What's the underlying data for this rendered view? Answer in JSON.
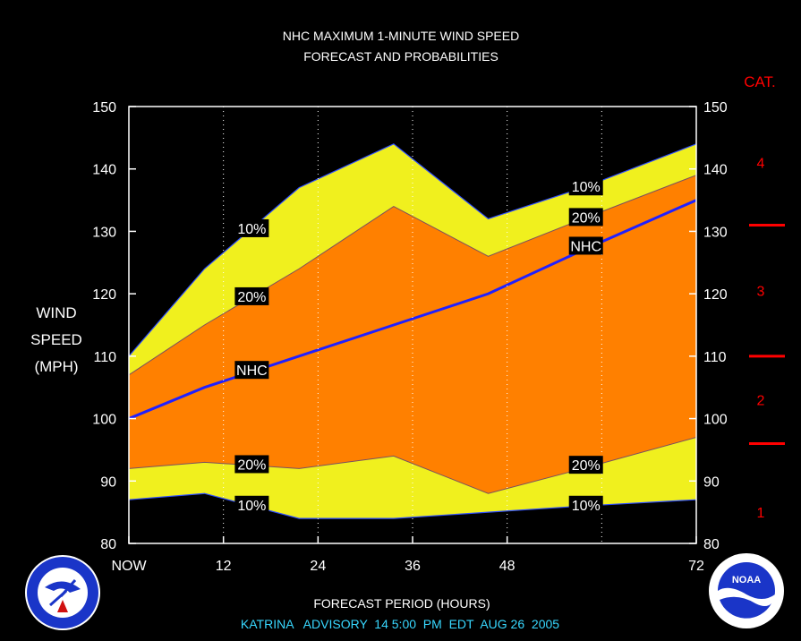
{
  "chart_data": {
    "type": "area",
    "title": "NHC MAXIMUM 1-MINUTE WIND SPEED",
    "subtitle": "FORECAST AND PROBABILITIES",
    "ylabel": [
      "WIND",
      "SPEED",
      "(MPH)"
    ],
    "xlabel": "FORECAST PERIOD (HOURS)",
    "footer": "KATRINA   ADVISORY  14 5:00  PM  EDT  AUG 26  2005",
    "ylim": [
      80,
      150
    ],
    "xlim": [
      0,
      72
    ],
    "y_ticks": [
      "80",
      "90",
      "100",
      "110",
      "120",
      "130",
      "140",
      "150"
    ],
    "x_ticks": [
      {
        "x": 0,
        "label": "NOW"
      },
      {
        "x": 12,
        "label": "12"
      },
      {
        "x": 24,
        "label": "24"
      },
      {
        "x": 36,
        "label": "36"
      },
      {
        "x": 48,
        "label": "48"
      },
      {
        "x": 72,
        "label": "72"
      }
    ],
    "grid_x": [
      12,
      24,
      36,
      48,
      60
    ],
    "x": [
      0,
      9.6,
      21.6,
      33.6,
      45.6,
      57.6,
      72
    ],
    "series": [
      {
        "name": "10%",
        "values": [
          110,
          124,
          137,
          144,
          132,
          137,
          144
        ],
        "color": "#f0f01e"
      },
      {
        "name": "20%",
        "values": [
          107,
          115,
          124,
          134,
          126,
          132,
          139
        ],
        "color": "#ff8000"
      },
      {
        "name": "NHC",
        "values": [
          100,
          105,
          110,
          115,
          120,
          127,
          135
        ],
        "color": "#2020ff"
      },
      {
        "name": "20%",
        "values": [
          92,
          93,
          92,
          94,
          88,
          92,
          97
        ],
        "color": "#f0f01e"
      },
      {
        "name": "10%",
        "values": [
          87,
          88,
          84,
          84,
          85,
          86,
          87
        ],
        "color": "#000000"
      }
    ],
    "labels": [
      {
        "text": "10%",
        "x": 15.6,
        "y": 130.5
      },
      {
        "text": "20%",
        "x": 15.6,
        "y": 119.6
      },
      {
        "text": "NHC",
        "x": 15.6,
        "y": 107.8
      },
      {
        "text": "20%",
        "x": 15.6,
        "y": 92.7
      },
      {
        "text": "10%",
        "x": 15.6,
        "y": 86.2
      },
      {
        "text": "10%",
        "x": 58,
        "y": 137.2
      },
      {
        "text": "20%",
        "x": 58,
        "y": 132.3
      },
      {
        "text": "NHC",
        "x": 58,
        "y": 127.7
      },
      {
        "text": "20%",
        "x": 58,
        "y": 92.6
      },
      {
        "text": "10%",
        "x": 58,
        "y": 86.2
      }
    ],
    "category_title": "CAT.",
    "category_dividers": [
      96,
      110,
      131
    ],
    "categories": [
      {
        "label": "1",
        "y": 85
      },
      {
        "label": "2",
        "y": 103
      },
      {
        "label": "3",
        "y": 120.5
      },
      {
        "label": "4",
        "y": 141
      }
    ],
    "colors": {
      "background": "#000000",
      "outer_band": "#f0f01e",
      "inner_band": "#ff8000",
      "nhc_line": "#2020ff",
      "category": "#ff0000",
      "footer": "#38d8ff"
    },
    "logos": {
      "left": "NATIONAL WEATHER SERVICE",
      "right": "NOAA"
    }
  }
}
